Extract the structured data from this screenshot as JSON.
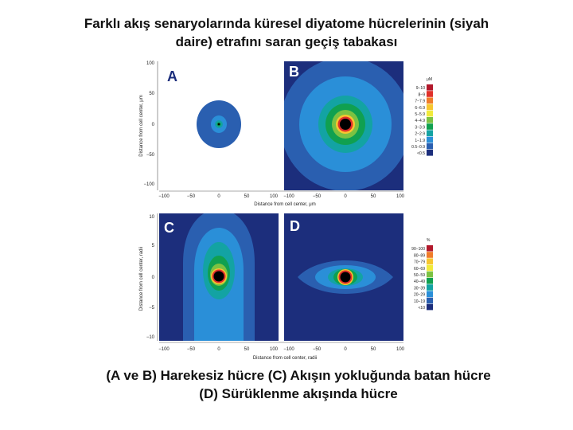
{
  "title_line1": "Farklı akış senaryolarında küresel diyatome hücrelerinin (siyah",
  "title_line2": "daire) etrafını saran geçiş tabakası",
  "caption_line1": "(A ve B) Harekesiz hücre   (C) Akışın yokluğunda batan hücre",
  "caption_line2": "(D) Sürüklenme akışında hücre",
  "panels": {
    "a": "A",
    "b": "B",
    "c": "C",
    "d": "D"
  },
  "axes": {
    "top_ylabel": "Distance from cell center, μm",
    "top_xlabel": "Distance from cell center, μm",
    "bottom_ylabel": "Distance from cell center, radii",
    "bottom_xlabel": "Distance from cell center, radii",
    "top_y_ticks": [
      "100",
      "50",
      "0",
      "−50",
      "−100"
    ],
    "bottom_y_ticks": [
      "10",
      "5",
      "0",
      "−5",
      "−10"
    ],
    "x_ticks": [
      "−100",
      "−50",
      "0",
      "50",
      "100"
    ]
  },
  "legend_top": {
    "unit": "μM",
    "entries": [
      "9−10",
      "8−9",
      "7−7.9",
      "6−6.9",
      "5−5.9",
      "4−4.9",
      "3−3.9",
      "2−2.9",
      "1−1.9",
      "0.5−0.9",
      "<0.5"
    ]
  },
  "legend_bottom": {
    "unit": "%",
    "entries": [
      "90−100",
      "80−89",
      "70−79",
      "60−69",
      "50−59",
      "40−49",
      "30−39",
      "20−29",
      "10−19",
      "<10"
    ]
  },
  "colors": {
    "scale": [
      "#b2182b",
      "#e0302a",
      "#f07c2a",
      "#f7c630",
      "#f1ea3a",
      "#7cc242",
      "#10a050",
      "#13a3a3",
      "#2a8fd8",
      "#2a5fb0",
      "#1c2e7c"
    ],
    "cell": "#000000",
    "background": "#1c2e7c"
  }
}
